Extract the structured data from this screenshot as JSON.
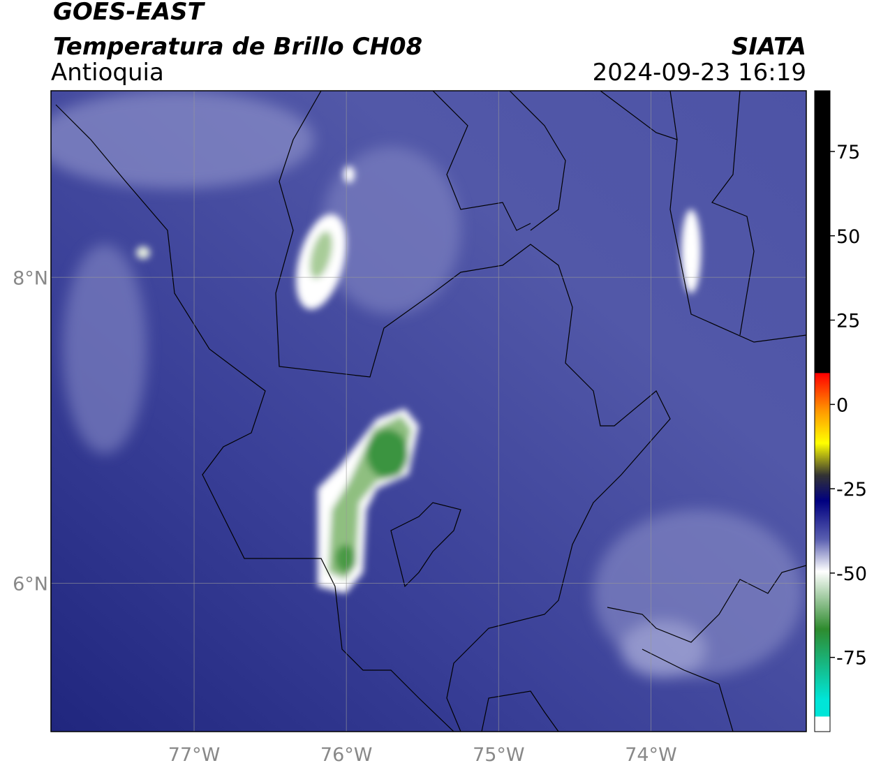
{
  "header": {
    "title": "GOES-EAST",
    "subtitle": "Temperatura de Brillo CH08",
    "region": "Antioquia",
    "source": "SIATA",
    "datetime": "2024-09-23 16:19"
  },
  "map": {
    "xlim": [
      -77.94,
      -72.98
    ],
    "ylim": [
      5.03,
      9.22
    ],
    "xticks": [
      {
        "value": -77,
        "label": "77°W"
      },
      {
        "value": -76,
        "label": "76°W"
      },
      {
        "value": -75,
        "label": "75°W"
      },
      {
        "value": -74,
        "label": "74°W"
      }
    ],
    "yticks": [
      {
        "value": 8,
        "label": "8°N"
      },
      {
        "value": 6,
        "label": "6°N"
      }
    ],
    "grid": true
  },
  "colorbar": {
    "lim": [
      -97,
      93
    ],
    "ticks": [
      75,
      50,
      25,
      0,
      -25,
      -50,
      -75
    ]
  }
}
